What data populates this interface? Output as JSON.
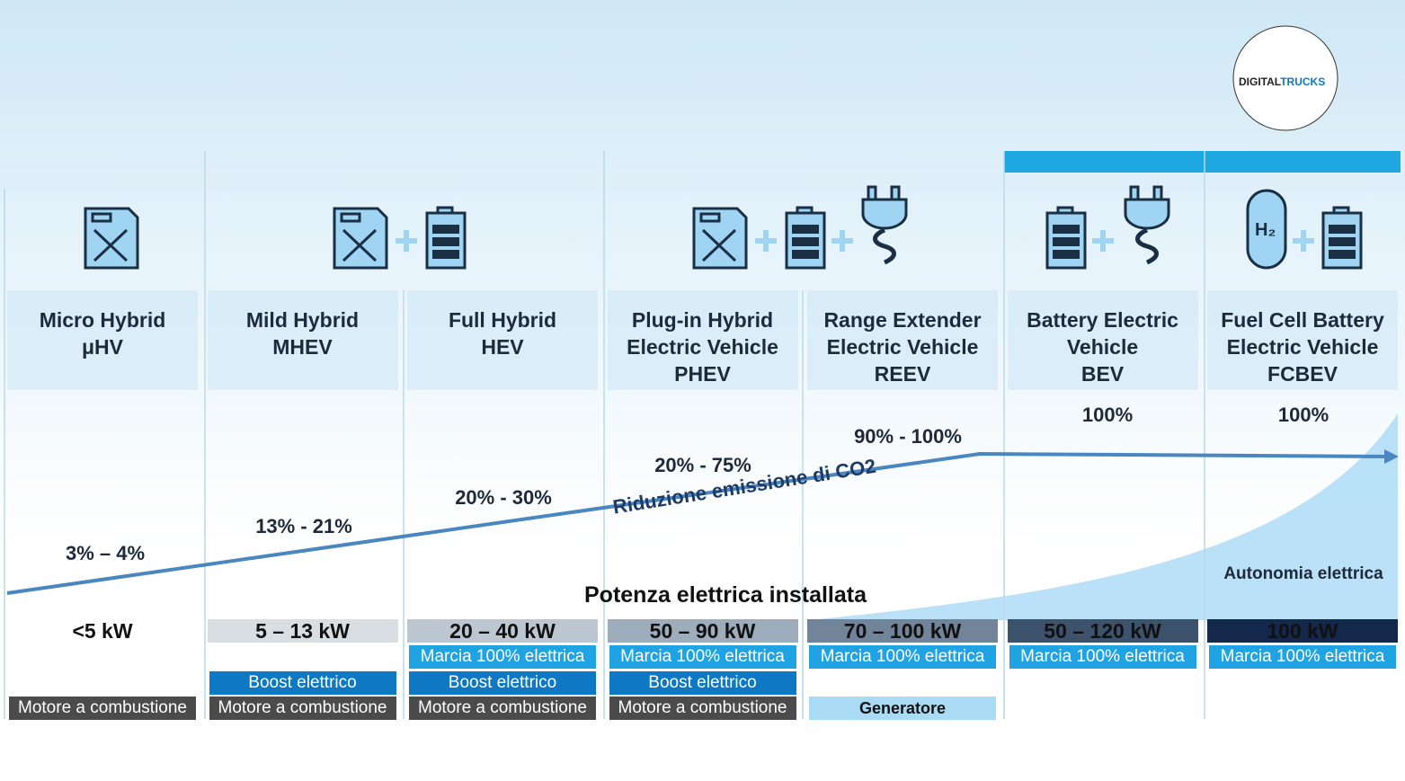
{
  "logo": {
    "part1": "DIGITAL",
    "part2": "TRUCKS"
  },
  "columns": [
    {
      "title_lines": [
        "Micro Hybrid",
        "μHV"
      ],
      "co2_reduction": "3% – 4%",
      "power": "<5 kW",
      "features": {
        "base": "Motore a combustione"
      }
    },
    {
      "title_lines": [
        "Mild Hybrid",
        "MHEV"
      ],
      "co2_reduction": "13% - 21%",
      "power": "5 – 13 kW",
      "features": {
        "boost": "Boost elettrico",
        "base": "Motore a combustione"
      }
    },
    {
      "title_lines": [
        "Full Hybrid",
        "HEV"
      ],
      "co2_reduction": "20% - 30%",
      "power": "20 – 40 kW",
      "features": {
        "electric_drive": "Marcia 100% elettrica",
        "boost": "Boost elettrico",
        "base": "Motore a combustione"
      }
    },
    {
      "title_lines": [
        "Plug-in Hybrid",
        "Electric Vehicle",
        "PHEV"
      ],
      "co2_reduction": "20% - 75%",
      "power": "50 – 90 kW",
      "features": {
        "electric_drive": "Marcia 100% elettrica",
        "boost": "Boost elettrico",
        "base": "Motore a combustione"
      }
    },
    {
      "title_lines": [
        "Range Extender",
        "Electric Vehicle",
        "REEV"
      ],
      "co2_reduction": "90% - 100%",
      "power": "70 – 100 kW",
      "features": {
        "electric_drive": "Marcia 100% elettrica",
        "base": "Generatore"
      }
    },
    {
      "title_lines": [
        "Battery Electric",
        "Vehicle",
        "BEV"
      ],
      "co2_reduction": "100%",
      "power": "50 – 120 kW",
      "features": {
        "electric_drive": "Marcia 100% elettrica"
      }
    },
    {
      "title_lines": [
        "Fuel Cell Battery",
        "Electric Vehicle",
        "FCBEV"
      ],
      "co2_reduction": "100%",
      "power": "100 kW",
      "features": {
        "electric_drive": "Marcia 100% elettrica"
      }
    }
  ],
  "co2_arrow_label": "Riduzione emissione di CO2",
  "power_heading": "Potenza elettrica installata",
  "range_label": "Autonomia elettrica"
}
